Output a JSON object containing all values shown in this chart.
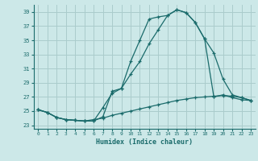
{
  "xlabel": "Humidex (Indice chaleur)",
  "background_color": "#cce8e8",
  "grid_color": "#aacccc",
  "line_color": "#1a6b6b",
  "xlim": [
    -0.5,
    23.5
  ],
  "ylim": [
    22.5,
    40.0
  ],
  "yticks": [
    23,
    25,
    27,
    29,
    31,
    33,
    35,
    37,
    39
  ],
  "xticks": [
    0,
    1,
    2,
    3,
    4,
    5,
    6,
    7,
    8,
    9,
    10,
    11,
    12,
    13,
    14,
    15,
    16,
    17,
    18,
    19,
    20,
    21,
    22,
    23
  ],
  "series1_x": [
    0,
    1,
    2,
    3,
    4,
    5,
    6,
    7,
    8,
    9,
    10,
    11,
    12,
    13,
    14,
    15,
    16,
    17,
    18,
    19,
    20,
    21,
    22,
    23
  ],
  "series1_y": [
    25.2,
    24.8,
    24.1,
    23.8,
    23.7,
    23.6,
    23.6,
    24.2,
    27.8,
    28.2,
    32.0,
    35.0,
    38.0,
    38.3,
    38.5,
    39.3,
    38.9,
    37.5,
    35.2,
    27.0,
    27.3,
    26.9,
    26.6,
    26.5
  ],
  "series2_x": [
    0,
    1,
    2,
    3,
    4,
    5,
    6,
    7,
    8,
    9,
    10,
    11,
    12,
    13,
    14,
    15,
    16,
    17,
    18,
    19,
    20,
    21,
    22,
    23
  ],
  "series2_y": [
    25.2,
    24.8,
    24.1,
    23.8,
    23.7,
    23.6,
    23.6,
    25.5,
    27.5,
    28.2,
    30.2,
    32.0,
    34.5,
    36.5,
    38.5,
    39.3,
    38.9,
    37.5,
    35.2,
    33.2,
    29.5,
    27.3,
    26.9,
    26.5
  ],
  "series3_x": [
    0,
    1,
    2,
    3,
    4,
    5,
    6,
    7,
    8,
    9,
    10,
    11,
    12,
    13,
    14,
    15,
    16,
    17,
    18,
    19,
    20,
    21,
    22,
    23
  ],
  "series3_y": [
    25.2,
    24.8,
    24.1,
    23.8,
    23.7,
    23.6,
    23.8,
    24.0,
    24.4,
    24.7,
    25.0,
    25.3,
    25.6,
    25.9,
    26.2,
    26.5,
    26.7,
    26.9,
    27.0,
    27.1,
    27.2,
    27.1,
    26.9,
    26.5
  ]
}
